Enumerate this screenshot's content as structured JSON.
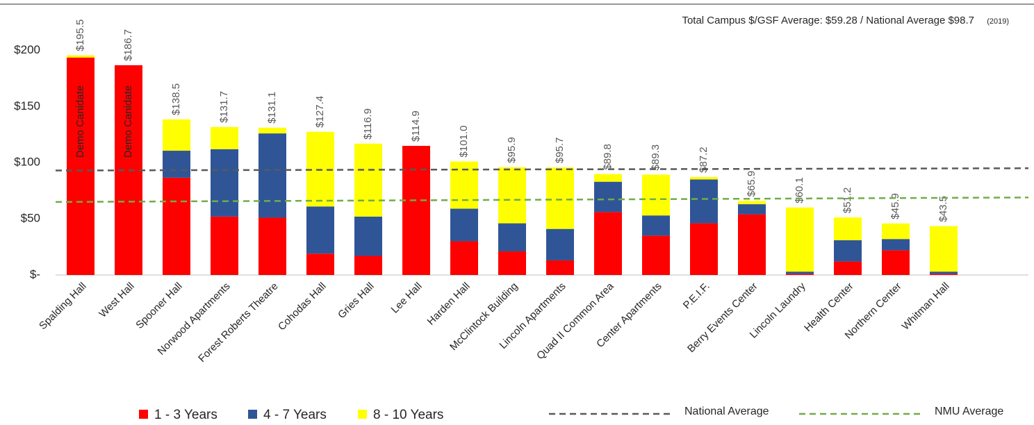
{
  "chart_data": {
    "type": "stacked_bar",
    "subtitle": "Total Campus $/GSF Average: $59.28 / National Average $98.7",
    "subtitle_note": "(2019)",
    "categories": [
      "Spalding Hall",
      "West Hall",
      "Spooner Hall",
      "Norwood Apartments",
      "Forest Roberts Theatre",
      "Cohodas Hall",
      "Gries Hall",
      "Lee Hall",
      "Harden Hall",
      "McClintock Building",
      "Lincoln Apartments",
      "Quad II Common Area",
      "Center Apartments",
      "P.E.I.F.",
      "Berry Events Center",
      "Lincoln Laundry",
      "Health Center",
      "Northern Center",
      "Whitman Hall"
    ],
    "series": [
      {
        "name": "1 - 3 Years",
        "color": "#ff0000",
        "values": [
          193.5,
          186.7,
          86.6,
          52,
          51,
          19,
          17,
          114.9,
          30,
          21,
          13,
          56,
          35,
          46,
          54,
          1,
          12,
          22,
          1
        ]
      },
      {
        "name": "4 - 7 Years",
        "color": "#2f5597",
        "values": [
          0,
          0,
          24,
          60,
          75,
          42,
          35,
          0,
          29,
          25,
          28,
          27,
          18,
          39,
          9,
          2,
          19,
          10,
          2
        ]
      },
      {
        "name": "8 - 10 Years",
        "color": "#ffff00",
        "values": [
          2,
          0,
          27.9,
          19.7,
          5.1,
          66.4,
          64.9,
          0,
          42,
          49.9,
          54.7,
          6.8,
          36.3,
          2.2,
          2.9,
          57.1,
          20.2,
          13.9,
          40.5
        ]
      }
    ],
    "totals": [
      195.5,
      186.7,
      138.5,
      131.7,
      131.1,
      127.4,
      116.9,
      114.9,
      101.0,
      95.9,
      95.7,
      89.8,
      89.3,
      87.2,
      65.9,
      60.1,
      51.2,
      45.9,
      43.5
    ],
    "total_labels": [
      "$195.5",
      "$186.7",
      "$138.5",
      "$131.7",
      "$131.1",
      "$127.4",
      "$116.9",
      "$114.9",
      "$101.0",
      "$95.9",
      "$95.7",
      "$89.8",
      "$89.3",
      "$87.2",
      "$65.9",
      "$60.1",
      "$51.2",
      "$45.9",
      "$43.5"
    ],
    "annotations": [
      {
        "text": "Demo Canidate",
        "category": "Spalding Hall"
      },
      {
        "text": "Demo Canidate",
        "category": "West Hall"
      }
    ],
    "reference_lines": [
      {
        "name": "National Average",
        "color": "#595959",
        "values": [
          93,
          95
        ]
      },
      {
        "name": "NMU Average",
        "color": "#70ad47",
        "values": [
          65,
          69
        ]
      }
    ],
    "ylim": [
      0,
      220
    ],
    "yticks": [
      {
        "value": 0,
        "label": "$-"
      },
      {
        "value": 50,
        "label": "$50"
      },
      {
        "value": 100,
        "label": "$100"
      },
      {
        "value": 150,
        "label": "$150"
      },
      {
        "value": 200,
        "label": "$200"
      }
    ],
    "grid": false
  }
}
